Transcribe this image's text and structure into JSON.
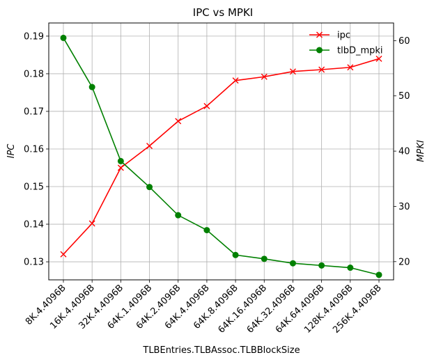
{
  "chart_data": {
    "type": "line",
    "title": "IPC vs MPKI",
    "xlabel": "TLBEntries.TLBAssoc.TLBBlockSize",
    "ylabel_left": "IPC",
    "ylabel_right": "MPKI",
    "categories": [
      "8K.4.4096B",
      "16K.4.4096B",
      "32K.4.4096B",
      "64K.1.4096B",
      "64K.2.4096B",
      "64K.4.4096B",
      "64K.8.4096B",
      "64K.16.4096B",
      "64K.32.4096B",
      "64K.64.4096B",
      "128K.4.4096B",
      "256K.4.4096B"
    ],
    "series": [
      {
        "name": "ipc",
        "axis": "left",
        "color": "#ff0000",
        "marker": "x",
        "values": [
          0.132,
          0.1402,
          0.155,
          0.1608,
          0.1674,
          0.1714,
          0.1782,
          0.1792,
          0.1806,
          0.1811,
          0.1817,
          0.184
        ]
      },
      {
        "name": "tlbD_mpki",
        "axis": "right",
        "color": "#008000",
        "marker": "o",
        "values": [
          60.5,
          51.6,
          38.2,
          33.5,
          28.4,
          25.7,
          21.2,
          20.5,
          19.7,
          19.3,
          18.9,
          17.6
        ]
      }
    ],
    "ylim_left": [
      0.1252,
      0.1935
    ],
    "yticks_left": [
      "0.13",
      "0.14",
      "0.15",
      "0.16",
      "0.17",
      "0.18",
      "0.19"
    ],
    "ylim_right": [
      16.7,
      63.2
    ],
    "yticks_right": [
      "20",
      "30",
      "40",
      "50",
      "60"
    ],
    "grid": true,
    "legend": "top-right"
  }
}
